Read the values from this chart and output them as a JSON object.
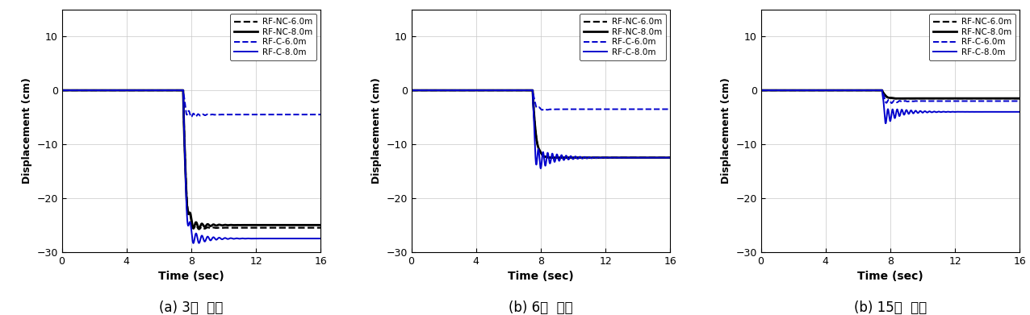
{
  "subplots": [
    {
      "label": "(a) 3층  모델",
      "xlim": [
        0,
        16
      ],
      "ylim": [
        -30,
        15
      ],
      "yticks": [
        -30,
        -20,
        -10,
        0,
        10
      ],
      "xticks": [
        0,
        4,
        8,
        12,
        16
      ],
      "series": [
        {
          "name": "RF-NC-6.0m",
          "color": "#000000",
          "linestyle": "dashed",
          "linewidth": 1.6,
          "pre_drop_time": 7.5,
          "settle_val": -25.5,
          "drop_extra": -2.0,
          "oscillation_amp": 1.5,
          "oscillation_freq": 2.8,
          "oscillation_decay": 1.8,
          "drop_speed": 0.18
        },
        {
          "name": "RF-NC-8.0m",
          "color": "#000000",
          "linestyle": "solid",
          "linewidth": 2.0,
          "pre_drop_time": 7.5,
          "settle_val": -25.0,
          "drop_extra": -3.5,
          "oscillation_amp": 2.0,
          "oscillation_freq": 2.8,
          "oscillation_decay": 1.5,
          "drop_speed": 0.18
        },
        {
          "name": "RF-C-6.0m",
          "color": "#0000cc",
          "linestyle": "dashed",
          "linewidth": 1.4,
          "pre_drop_time": 7.5,
          "settle_val": -4.5,
          "drop_extra": -1.5,
          "oscillation_amp": 1.0,
          "oscillation_freq": 3.5,
          "oscillation_decay": 1.8,
          "drop_speed": 0.2
        },
        {
          "name": "RF-C-8.0m",
          "color": "#0000cc",
          "linestyle": "solid",
          "linewidth": 1.4,
          "pre_drop_time": 7.5,
          "settle_val": -27.5,
          "drop_extra": -3.0,
          "oscillation_amp": 2.5,
          "oscillation_freq": 2.8,
          "oscillation_decay": 1.2,
          "drop_speed": 0.18
        }
      ]
    },
    {
      "label": "(b) 6층  모델",
      "xlim": [
        0,
        16
      ],
      "ylim": [
        -30,
        15
      ],
      "yticks": [
        -30,
        -20,
        -10,
        0,
        10
      ],
      "xticks": [
        0,
        4,
        8,
        12,
        16
      ],
      "series": [
        {
          "name": "RF-NC-6.0m",
          "color": "#000000",
          "linestyle": "dashed",
          "linewidth": 1.6,
          "pre_drop_time": 7.5,
          "settle_val": -12.5,
          "drop_extra": -0.5,
          "oscillation_amp": 0.4,
          "oscillation_freq": 2.5,
          "oscillation_decay": 3.0,
          "drop_speed": 0.2
        },
        {
          "name": "RF-NC-8.0m",
          "color": "#000000",
          "linestyle": "solid",
          "linewidth": 2.0,
          "pre_drop_time": 7.5,
          "settle_val": -12.5,
          "drop_extra": -0.5,
          "oscillation_amp": 0.4,
          "oscillation_freq": 2.5,
          "oscillation_decay": 3.0,
          "drop_speed": 0.2
        },
        {
          "name": "RF-C-6.0m",
          "color": "#0000cc",
          "linestyle": "dashed",
          "linewidth": 1.4,
          "pre_drop_time": 7.5,
          "settle_val": -3.5,
          "drop_extra": -1.0,
          "oscillation_amp": 0.5,
          "oscillation_freq": 3.0,
          "oscillation_decay": 2.5,
          "drop_speed": 0.22
        },
        {
          "name": "RF-C-8.0m",
          "color": "#0000cc",
          "linestyle": "solid",
          "linewidth": 1.4,
          "pre_drop_time": 7.5,
          "settle_val": -12.5,
          "drop_extra": -4.5,
          "oscillation_amp": 2.5,
          "oscillation_freq": 3.5,
          "oscillation_decay": 0.9,
          "drop_speed": 0.15
        }
      ]
    },
    {
      "label": "(b) 15층  모델",
      "xlim": [
        0,
        16
      ],
      "ylim": [
        -30,
        15
      ],
      "yticks": [
        -30,
        -20,
        -10,
        0,
        10
      ],
      "xticks": [
        0,
        4,
        8,
        12,
        16
      ],
      "series": [
        {
          "name": "RF-NC-6.0m",
          "color": "#000000",
          "linestyle": "dashed",
          "linewidth": 1.6,
          "pre_drop_time": 7.5,
          "settle_val": -1.5,
          "drop_extra": -0.3,
          "oscillation_amp": 0.15,
          "oscillation_freq": 2.0,
          "oscillation_decay": 3.0,
          "drop_speed": 0.25
        },
        {
          "name": "RF-NC-8.0m",
          "color": "#000000",
          "linestyle": "solid",
          "linewidth": 2.0,
          "pre_drop_time": 7.5,
          "settle_val": -1.5,
          "drop_extra": -0.3,
          "oscillation_amp": 0.15,
          "oscillation_freq": 2.0,
          "oscillation_decay": 3.0,
          "drop_speed": 0.25
        },
        {
          "name": "RF-C-6.0m",
          "color": "#0000cc",
          "linestyle": "dashed",
          "linewidth": 1.4,
          "pre_drop_time": 7.5,
          "settle_val": -2.0,
          "drop_extra": -1.0,
          "oscillation_amp": 0.6,
          "oscillation_freq": 3.0,
          "oscillation_decay": 1.5,
          "drop_speed": 0.22
        },
        {
          "name": "RF-C-8.0m",
          "color": "#0000cc",
          "linestyle": "solid",
          "linewidth": 1.4,
          "pre_drop_time": 7.5,
          "settle_val": -4.0,
          "drop_extra": -3.5,
          "oscillation_amp": 1.8,
          "oscillation_freq": 3.5,
          "oscillation_decay": 1.0,
          "drop_speed": 0.18
        }
      ]
    }
  ],
  "legend_entries": [
    {
      "name": "RF-NC-6.0m",
      "color": "#000000",
      "linestyle": "dashed",
      "linewidth": 1.6
    },
    {
      "name": "RF-NC-8.0m",
      "color": "#000000",
      "linestyle": "solid",
      "linewidth": 2.0
    },
    {
      "name": "RF-C-6.0m",
      "color": "#0000cc",
      "linestyle": "dashed",
      "linewidth": 1.4
    },
    {
      "name": "RF-C-8.0m",
      "color": "#0000cc",
      "linestyle": "solid",
      "linewidth": 1.4
    }
  ],
  "xlabel": "Time (sec)",
  "ylabel": "Displacement (cm)",
  "background_color": "#ffffff",
  "grid_color": "#c8c8c8"
}
